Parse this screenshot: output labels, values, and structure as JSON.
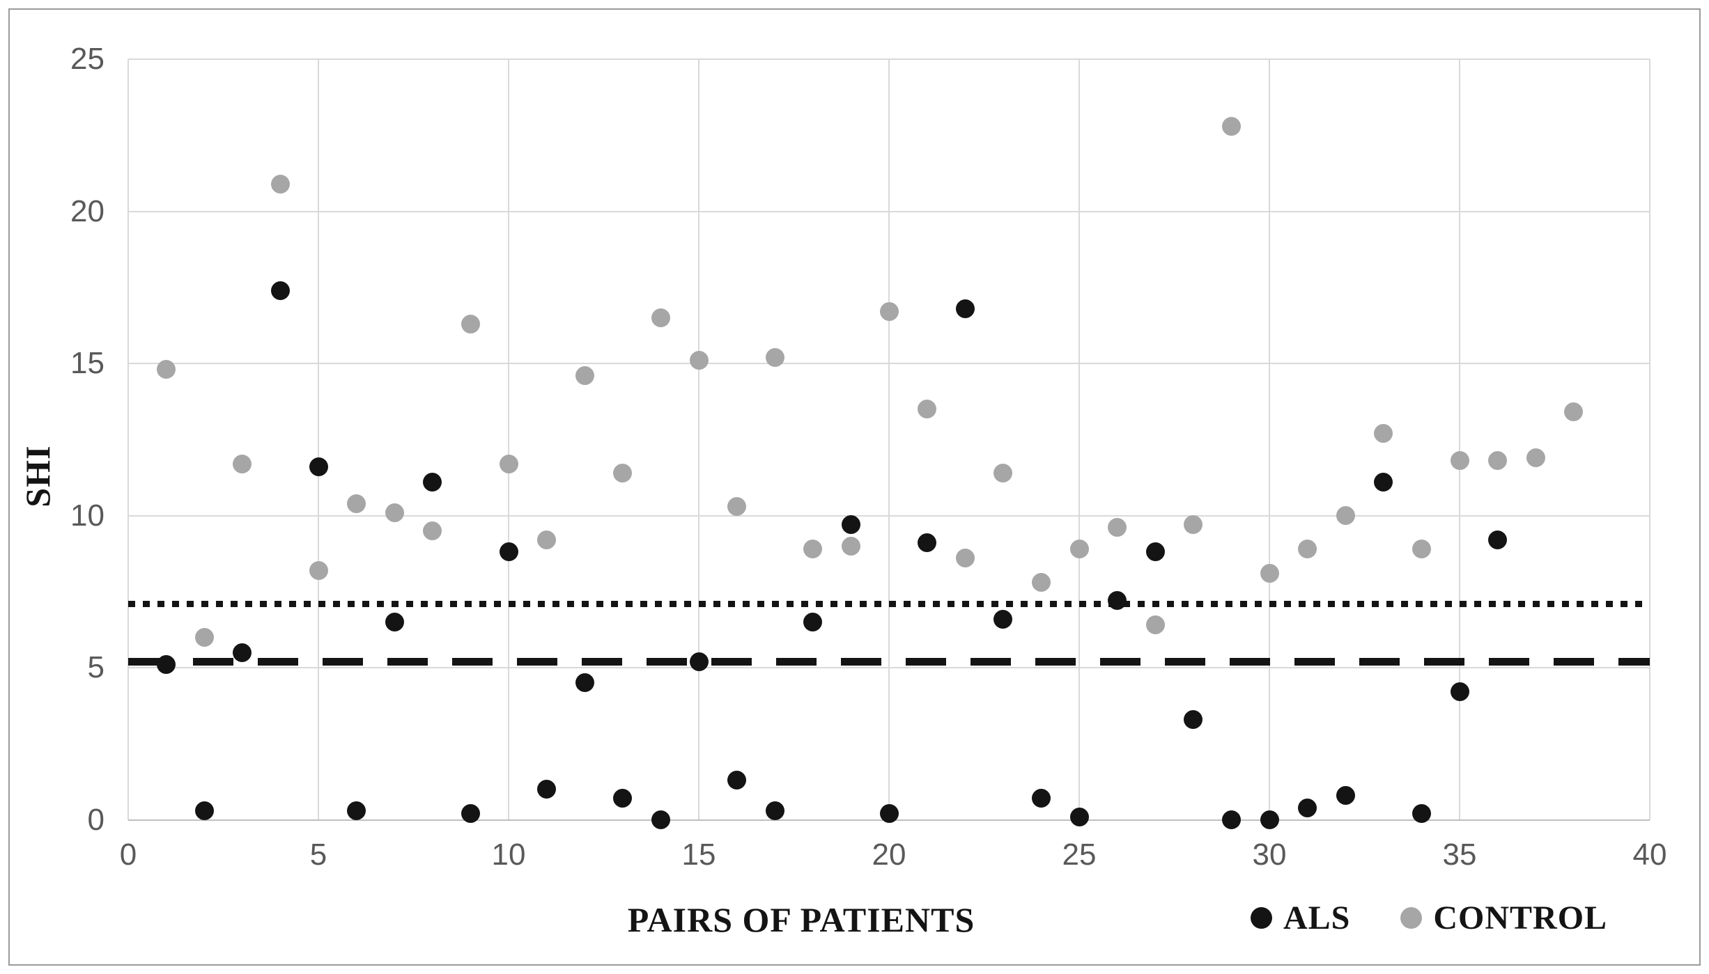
{
  "figure": {
    "background_color": "#ffffff",
    "frame_border_color": "#9b9b9b",
    "gridline_color": "#d9d9d9",
    "tick_label_color": "#595959",
    "title_color": "#141414"
  },
  "chart_data": {
    "type": "scatter",
    "title": "",
    "xlabel": "PAIRS OF PATIENTS",
    "ylabel": "SHI",
    "xlim": [
      0,
      40
    ],
    "ylim": [
      0,
      25
    ],
    "x_ticks": [
      0,
      5,
      10,
      15,
      20,
      25,
      30,
      35,
      40
    ],
    "y_ticks": [
      0,
      5,
      10,
      15,
      20,
      25
    ],
    "grid": true,
    "legend_position": "bottom-right",
    "series": [
      {
        "name": "ALS",
        "color": "#141414",
        "marker": "circle",
        "x": [
          1,
          2,
          3,
          4,
          5,
          6,
          7,
          8,
          9,
          10,
          11,
          12,
          13,
          14,
          15,
          16,
          17,
          18,
          19,
          20,
          21,
          22,
          23,
          24,
          25,
          26,
          27,
          28,
          29,
          30,
          31,
          32,
          33,
          34,
          35,
          36
        ],
        "y": [
          5.1,
          0.3,
          5.5,
          17.4,
          11.6,
          0.3,
          6.5,
          11.1,
          0.2,
          8.8,
          1.0,
          4.5,
          0.7,
          0.0,
          5.2,
          1.3,
          0.3,
          6.5,
          9.7,
          0.2,
          9.1,
          16.8,
          6.6,
          0.7,
          0.1,
          7.2,
          8.8,
          3.3,
          0.0,
          0.0,
          0.4,
          0.8,
          11.1,
          0.2,
          4.2,
          9.2
        ]
      },
      {
        "name": "CONTROL",
        "color": "#a6a6a6",
        "marker": "circle",
        "x": [
          1,
          2,
          3,
          4,
          5,
          6,
          7,
          8,
          9,
          10,
          11,
          12,
          13,
          14,
          15,
          16,
          17,
          18,
          19,
          20,
          21,
          22,
          23,
          24,
          25,
          26,
          27,
          28,
          29,
          30,
          31,
          32,
          33,
          34,
          35,
          36,
          37,
          38
        ],
        "y": [
          14.8,
          6.0,
          11.7,
          20.9,
          8.2,
          10.4,
          10.1,
          9.5,
          16.3,
          11.7,
          9.2,
          14.6,
          11.4,
          16.5,
          15.1,
          10.3,
          15.2,
          8.9,
          9.0,
          16.7,
          13.5,
          8.6,
          11.4,
          7.8,
          8.9,
          9.6,
          6.4,
          9.7,
          22.8,
          8.1,
          8.9,
          10.0,
          12.7,
          8.9,
          11.8,
          11.8,
          11.9,
          13.4
        ]
      }
    ],
    "reference_lines": [
      {
        "name": "dotted-threshold",
        "y": 7.1,
        "style": "dotted",
        "color": "#141414"
      },
      {
        "name": "dashed-threshold",
        "y": 5.2,
        "style": "dashed",
        "color": "#141414"
      }
    ]
  }
}
